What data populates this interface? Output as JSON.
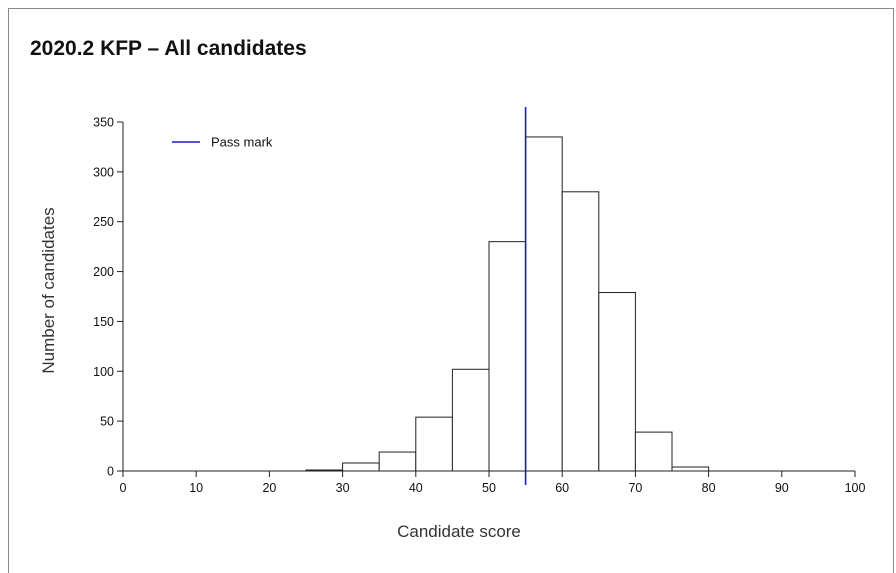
{
  "chart_data": {
    "type": "bar",
    "title": "2020.2 KFP – All candidates",
    "xlabel": "Candidate score",
    "ylabel": "Number of candidates",
    "xlim": [
      0,
      100
    ],
    "ylim": [
      0,
      350
    ],
    "xticks": [
      0,
      10,
      20,
      30,
      40,
      50,
      60,
      70,
      80,
      90,
      100
    ],
    "yticks": [
      0,
      50,
      100,
      150,
      200,
      250,
      300,
      350
    ],
    "bin_width": 5,
    "bins": [
      {
        "start": 25,
        "value": 1
      },
      {
        "start": 30,
        "value": 8
      },
      {
        "start": 35,
        "value": 19
      },
      {
        "start": 40,
        "value": 54
      },
      {
        "start": 45,
        "value": 102
      },
      {
        "start": 50,
        "value": 230
      },
      {
        "start": 55,
        "value": 335
      },
      {
        "start": 60,
        "value": 280
      },
      {
        "start": 65,
        "value": 179
      },
      {
        "start": 70,
        "value": 39
      },
      {
        "start": 75,
        "value": 4
      }
    ],
    "pass_mark": 55,
    "legend": {
      "label": "Pass mark",
      "position": "top-left",
      "color": "#1a1acc"
    },
    "bar_fill": "#ffffff",
    "bar_stroke": "#222222",
    "grid": false
  }
}
